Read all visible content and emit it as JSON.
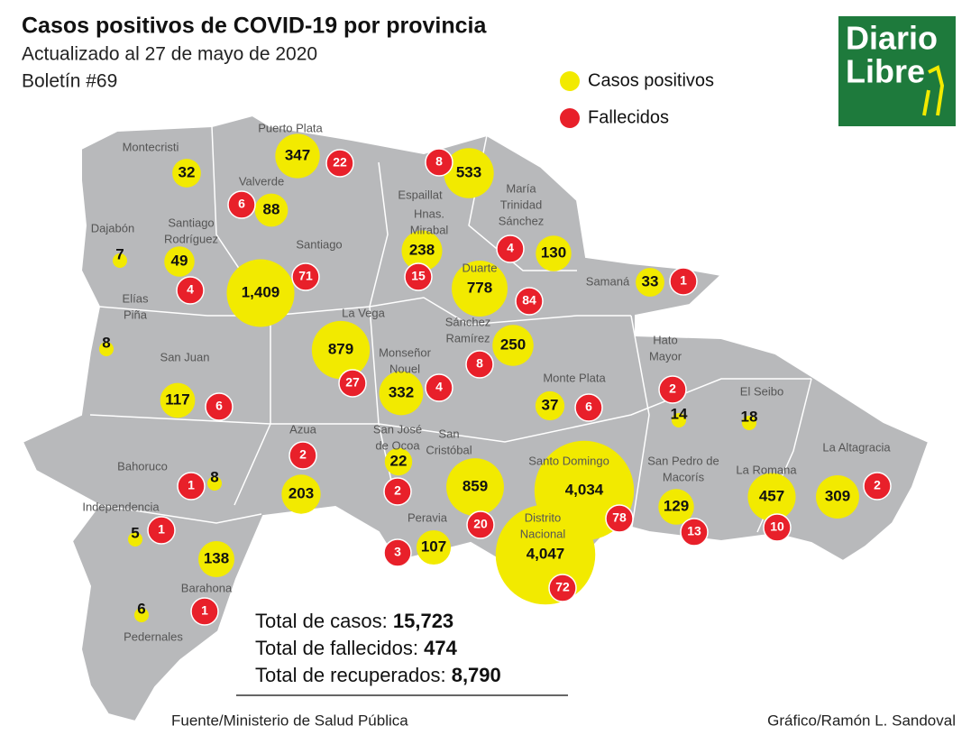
{
  "header": {
    "title": "Casos positivos de COVID-19 por provincia",
    "subtitle": "Actualizado al 27 de mayo de 2020",
    "bulletin": "Boletín #69"
  },
  "legend": {
    "cases": "Casos positivos",
    "deaths": "Fallecidos"
  },
  "logo": {
    "line1": "Diario",
    "line2": "Libre"
  },
  "provinces": [
    {
      "name": [
        "Montecristi"
      ],
      "cases": 32
    },
    {
      "name": [
        "Puerto Plata"
      ],
      "cases": 347,
      "deaths": 22
    },
    {
      "name": [
        "Espaillat"
      ],
      "cases": 533,
      "deaths": 8
    },
    {
      "name": [
        "Valverde"
      ],
      "cases": 88,
      "deaths": 6
    },
    {
      "name": [
        "Dajabón"
      ],
      "cases": 7
    },
    {
      "name": [
        "Santiago",
        "Rodríguez"
      ],
      "cases": 49,
      "deaths": 4
    },
    {
      "name": [
        "Santiago"
      ],
      "cases": {
        "value": 1409,
        "label": "1,409"
      },
      "deaths": 71
    },
    {
      "name": [
        "Hnas.",
        "Mirabal"
      ],
      "cases": 238,
      "deaths": 15
    },
    {
      "name": [
        "María",
        "Trinidad",
        "Sánchez"
      ],
      "cases": 130,
      "deaths": 4
    },
    {
      "name": [
        "Duarte"
      ],
      "cases": 778,
      "deaths": 84
    },
    {
      "name": [
        "Samaná"
      ],
      "cases": 33,
      "deaths": 1
    },
    {
      "name": [
        "Elías",
        "Piña"
      ],
      "cases": 8
    },
    {
      "name": [
        "La Vega"
      ],
      "cases": 879,
      "deaths": 27
    },
    {
      "name": [
        "Sánchez",
        "Ramírez"
      ],
      "cases": 250,
      "deaths": 8
    },
    {
      "name": [
        "Hato",
        "Mayor"
      ],
      "cases": 14,
      "deaths": 2
    },
    {
      "name": [
        "San Juan"
      ],
      "cases": 117,
      "deaths": 6
    },
    {
      "name": [
        "Monseñor",
        "Nouel"
      ],
      "cases": 332,
      "deaths": 4
    },
    {
      "name": [
        "Monte Plata"
      ],
      "cases": 37,
      "deaths": 6
    },
    {
      "name": [
        "El Seibo"
      ],
      "cases": 18
    },
    {
      "name": [
        "Azua"
      ],
      "cases": 203,
      "deaths": 2
    },
    {
      "name": [
        "San José",
        "de Ocoa"
      ],
      "cases": 22,
      "deaths": 2
    },
    {
      "name": [
        "San",
        "Cristóbal"
      ],
      "cases": 859,
      "deaths": 20
    },
    {
      "name": [
        "Santo Domingo"
      ],
      "cases": {
        "value": 4034,
        "label": "4,034"
      },
      "deaths": 78
    },
    {
      "name": [
        "San Pedro de",
        "Macorís"
      ],
      "cases": 129,
      "deaths": 13
    },
    {
      "name": [
        "La Romana"
      ],
      "cases": 457,
      "deaths": 10
    },
    {
      "name": [
        "La Altagracia"
      ],
      "cases": 309,
      "deaths": 2
    },
    {
      "name": [
        "Bahoruco"
      ],
      "cases": 8,
      "deaths": 1
    },
    {
      "name": [
        "Independencia"
      ],
      "cases": 5,
      "deaths": 1
    },
    {
      "name": [
        "Distrito",
        "Nacional"
      ],
      "cases": {
        "value": 4047,
        "label": "4,047"
      },
      "deaths": 72
    },
    {
      "name": [
        "Peravia"
      ],
      "cases": 107,
      "deaths": 3
    },
    {
      "name": [
        "Barahona"
      ],
      "cases": 138,
      "deaths": 1
    },
    {
      "name": [
        "Pedernales"
      ],
      "cases": 6
    }
  ],
  "totals": [
    {
      "label": "Total de casos:",
      "value": "15,723"
    },
    {
      "label": "Total de fallecidos:",
      "value": "474"
    },
    {
      "label": "Total de recuperados:",
      "value": "8,790"
    }
  ],
  "footer": {
    "source": "Fuente/Ministerio de Salud Pública",
    "credit": "Gráfico/Ramón L. Sandoval"
  }
}
